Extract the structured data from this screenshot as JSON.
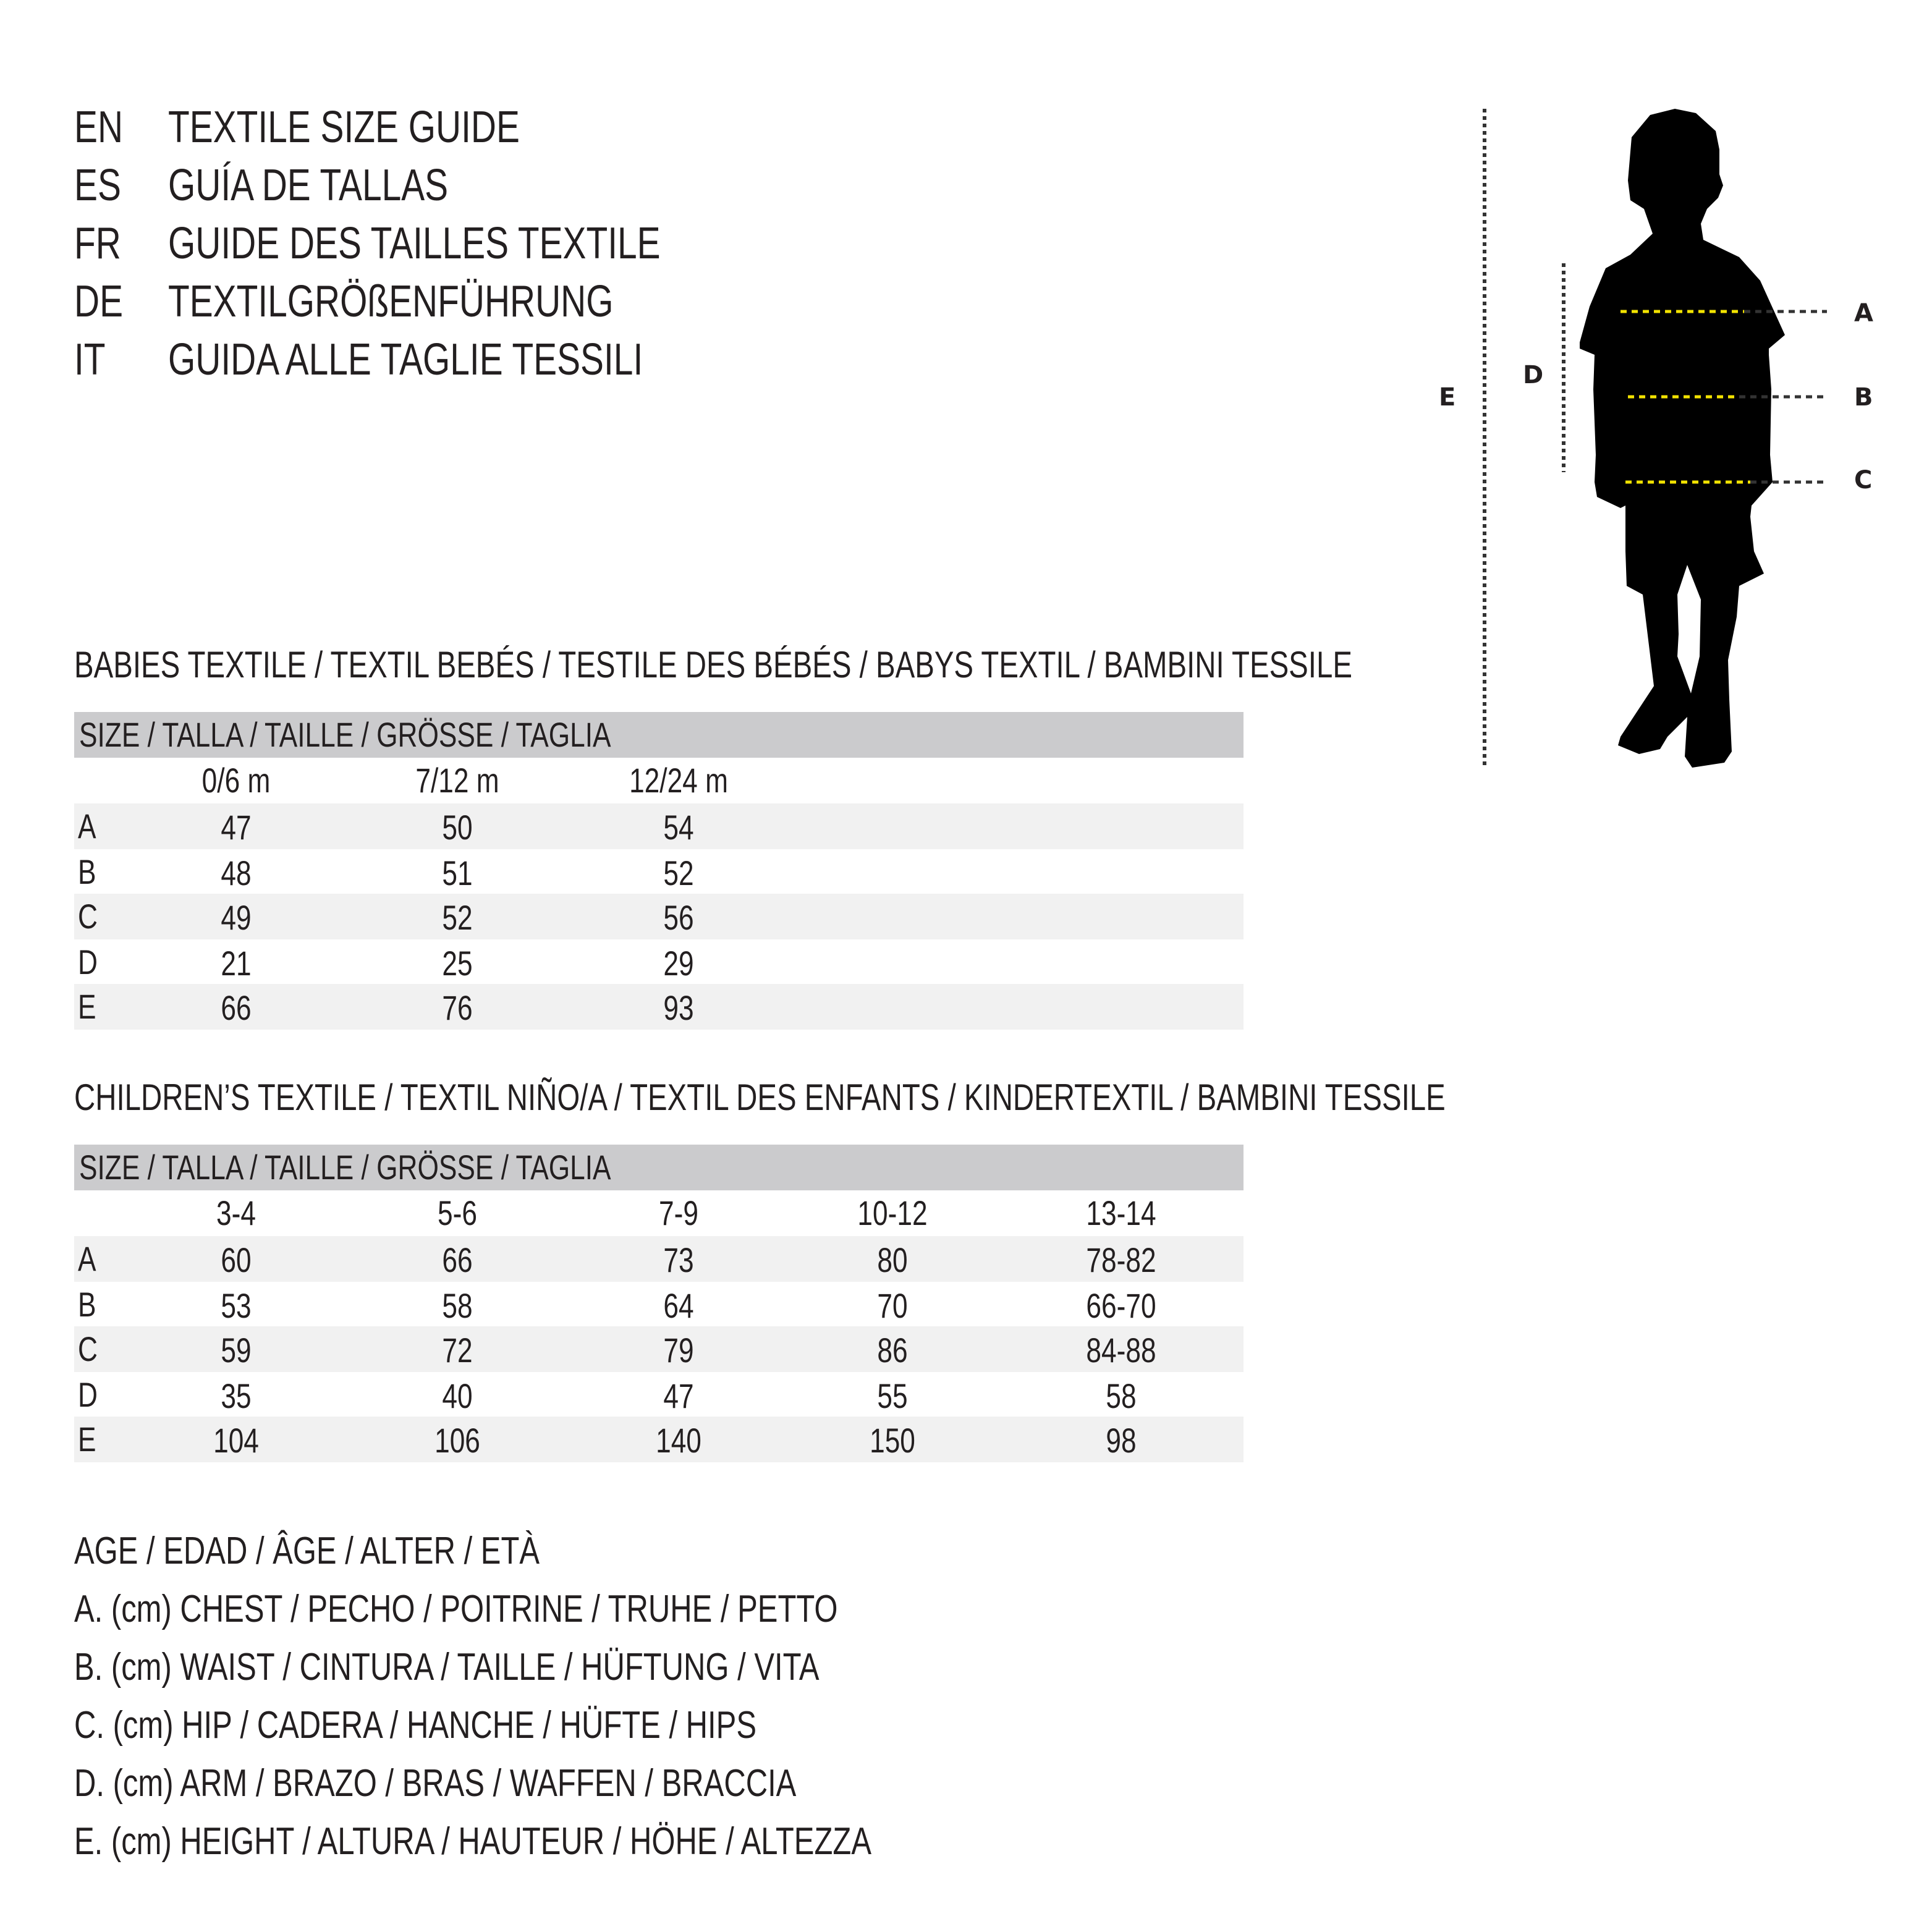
{
  "titles": [
    {
      "code": "EN",
      "text": "TEXTILE SIZE GUIDE"
    },
    {
      "code": "ES",
      "text": "GUÍA DE TALLAS"
    },
    {
      "code": "FR",
      "text": "GUIDE DES TAILLES TEXTILE"
    },
    {
      "code": "DE",
      "text": "TEXTILGRÖßENFÜHRUNG"
    },
    {
      "code": "IT",
      "text": "GUIDA ALLE TAGLIE TESSILI"
    }
  ],
  "babies": {
    "heading": "BABIES TEXTILE / TEXTIL BEBÉS / TESTILE DES BÉBÉS / BABYS TEXTIL / BAMBINI TESSILE",
    "size_label": "SIZE / TALLA / TAILLE / GRÖSSE / TAGLIA",
    "columns": [
      "0/6 m",
      "7/12 m",
      "12/24 m"
    ],
    "rows": [
      {
        "label": "A",
        "values": [
          "47",
          "50",
          "54"
        ]
      },
      {
        "label": "B",
        "values": [
          "48",
          "51",
          "52"
        ]
      },
      {
        "label": "C",
        "values": [
          "49",
          "52",
          "56"
        ]
      },
      {
        "label": "D",
        "values": [
          "21",
          "25",
          "29"
        ]
      },
      {
        "label": "E",
        "values": [
          "66",
          "76",
          "93"
        ]
      }
    ]
  },
  "children": {
    "heading": "CHILDREN’S TEXTILE / TEXTIL NIÑO/A / TEXTIL DES ENFANTS / KINDERTEXTIL / BAMBINI TESSILE",
    "size_label": "SIZE / TALLA / TAILLE / GRÖSSE / TAGLIA",
    "columns": [
      "3-4",
      "5-6",
      "7-9",
      "10-12",
      "13-14"
    ],
    "rows": [
      {
        "label": "A",
        "values": [
          "60",
          "66",
          "73",
          "80",
          "78-82"
        ]
      },
      {
        "label": "B",
        "values": [
          "53",
          "58",
          "64",
          "70",
          "66-70"
        ]
      },
      {
        "label": "C",
        "values": [
          "59",
          "72",
          "79",
          "86",
          "84-88"
        ]
      },
      {
        "label": "D",
        "values": [
          "35",
          "40",
          "47",
          "55",
          "58"
        ]
      },
      {
        "label": "E",
        "values": [
          "104",
          "106",
          "140",
          "150",
          "98"
        ]
      }
    ]
  },
  "legend": {
    "age": "AGE / EDAD / ÂGE / ALTER / ETÀ",
    "items": [
      "A. (cm) CHEST / PECHO / POITRINE / TRUHE / PETTO",
      "B. (cm) WAIST / CINTURA / TAILLE / HÜFTUNG / VITA",
      "C. (cm) HIP / CADERA / HANCHE / HÜFTE / HIPS",
      "D. (cm) ARM / BRAZO / BRAS / WAFFEN / BRACCIA",
      "E. (cm) HEIGHT / ALTURA / HAUTEUR / HÖHE / ALTEZZA"
    ]
  },
  "figure": {
    "labels": {
      "a": "A",
      "b": "B",
      "c": "C",
      "d": "D",
      "e": "E"
    },
    "measure_color": "#f2e200",
    "silhouette_color": "#000000"
  },
  "colors": {
    "header_bar": "#cbcbcd",
    "row_shade": "#f1f1f1",
    "text": "#231f20"
  }
}
